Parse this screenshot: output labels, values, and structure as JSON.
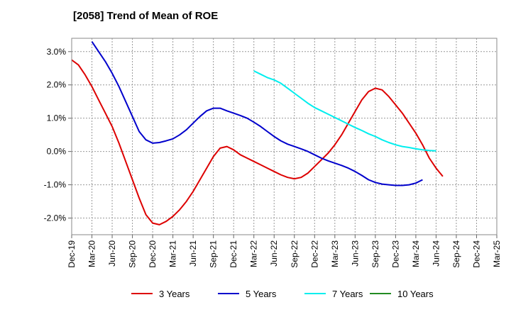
{
  "chart_data": {
    "type": "line",
    "title": "[2058]  Trend of Mean of ROE",
    "xlabel": "",
    "ylabel": "",
    "ylim": [
      -2.5,
      3.4
    ],
    "y_ticks": [
      3.0,
      2.0,
      1.0,
      0.0,
      -1.0,
      -2.0
    ],
    "y_tick_labels": [
      "3.0%",
      "2.0%",
      "1.0%",
      "0.0%",
      "-1.0%",
      "-2.0%"
    ],
    "x_ticks": [
      "Dec-19",
      "Mar-20",
      "Jun-20",
      "Sep-20",
      "Dec-20",
      "Mar-21",
      "Jun-21",
      "Sep-21",
      "Dec-21",
      "Mar-22",
      "Jun-22",
      "Sep-22",
      "Dec-22",
      "Mar-23",
      "Jun-23",
      "Sep-23",
      "Dec-23",
      "Mar-24",
      "Jun-24",
      "Sep-24",
      "Dec-24",
      "Mar-25"
    ],
    "grid": true,
    "legend_position": "bottom",
    "series": [
      {
        "name": "3 Years",
        "color": "#dd0000",
        "points": [
          [
            "Dec-19",
            2.75
          ],
          [
            "Jan-20",
            2.6
          ],
          [
            "Feb-20",
            2.3
          ],
          [
            "Mar-20",
            1.95
          ],
          [
            "Apr-20",
            1.55
          ],
          [
            "May-20",
            1.15
          ],
          [
            "Jun-20",
            0.75
          ],
          [
            "Jul-20",
            0.25
          ],
          [
            "Aug-20",
            -0.3
          ],
          [
            "Sep-20",
            -0.85
          ],
          [
            "Oct-20",
            -1.4
          ],
          [
            "Nov-20",
            -1.9
          ],
          [
            "Dec-20",
            -2.15
          ],
          [
            "Jan-21",
            -2.2
          ],
          [
            "Feb-21",
            -2.1
          ],
          [
            "Mar-21",
            -1.95
          ],
          [
            "Apr-21",
            -1.75
          ],
          [
            "May-21",
            -1.5
          ],
          [
            "Jun-21",
            -1.2
          ],
          [
            "Jul-21",
            -0.85
          ],
          [
            "Aug-21",
            -0.5
          ],
          [
            "Sep-21",
            -0.15
          ],
          [
            "Oct-21",
            0.1
          ],
          [
            "Nov-21",
            0.15
          ],
          [
            "Dec-21",
            0.05
          ],
          [
            "Jan-22",
            -0.1
          ],
          [
            "Feb-22",
            -0.2
          ],
          [
            "Mar-22",
            -0.3
          ],
          [
            "Apr-22",
            -0.4
          ],
          [
            "May-22",
            -0.5
          ],
          [
            "Jun-22",
            -0.6
          ],
          [
            "Jul-22",
            -0.7
          ],
          [
            "Aug-22",
            -0.78
          ],
          [
            "Sep-22",
            -0.82
          ],
          [
            "Oct-22",
            -0.78
          ],
          [
            "Nov-22",
            -0.65
          ],
          [
            "Dec-22",
            -0.45
          ],
          [
            "Jan-23",
            -0.25
          ],
          [
            "Feb-23",
            -0.05
          ],
          [
            "Mar-23",
            0.2
          ],
          [
            "Apr-23",
            0.5
          ],
          [
            "May-23",
            0.85
          ],
          [
            "Jun-23",
            1.2
          ],
          [
            "Jul-23",
            1.55
          ],
          [
            "Aug-23",
            1.8
          ],
          [
            "Sep-23",
            1.9
          ],
          [
            "Oct-23",
            1.85
          ],
          [
            "Nov-23",
            1.65
          ],
          [
            "Dec-23",
            1.4
          ],
          [
            "Jan-24",
            1.15
          ],
          [
            "Feb-24",
            0.85
          ],
          [
            "Mar-24",
            0.55
          ],
          [
            "Apr-24",
            0.2
          ],
          [
            "May-24",
            -0.2
          ],
          [
            "Jun-24",
            -0.5
          ],
          [
            "Jul-24",
            -0.75
          ]
        ]
      },
      {
        "name": "5 Years",
        "color": "#0000cc",
        "points": [
          [
            "Mar-20",
            3.3
          ],
          [
            "Apr-20",
            3.0
          ],
          [
            "May-20",
            2.7
          ],
          [
            "Jun-20",
            2.35
          ],
          [
            "Jul-20",
            1.95
          ],
          [
            "Aug-20",
            1.5
          ],
          [
            "Sep-20",
            1.05
          ],
          [
            "Oct-20",
            0.6
          ],
          [
            "Nov-20",
            0.35
          ],
          [
            "Dec-20",
            0.25
          ],
          [
            "Jan-21",
            0.27
          ],
          [
            "Feb-21",
            0.32
          ],
          [
            "Mar-21",
            0.38
          ],
          [
            "Apr-21",
            0.5
          ],
          [
            "May-21",
            0.65
          ],
          [
            "Jun-21",
            0.85
          ],
          [
            "Jul-21",
            1.05
          ],
          [
            "Aug-21",
            1.22
          ],
          [
            "Sep-21",
            1.3
          ],
          [
            "Oct-21",
            1.3
          ],
          [
            "Nov-21",
            1.22
          ],
          [
            "Dec-21",
            1.15
          ],
          [
            "Jan-22",
            1.08
          ],
          [
            "Feb-22",
            1.0
          ],
          [
            "Mar-22",
            0.88
          ],
          [
            "Apr-22",
            0.75
          ],
          [
            "May-22",
            0.6
          ],
          [
            "Jun-22",
            0.45
          ],
          [
            "Jul-22",
            0.32
          ],
          [
            "Aug-22",
            0.22
          ],
          [
            "Sep-22",
            0.15
          ],
          [
            "Oct-22",
            0.08
          ],
          [
            "Nov-22",
            0.0
          ],
          [
            "Dec-22",
            -0.1
          ],
          [
            "Jan-23",
            -0.2
          ],
          [
            "Feb-23",
            -0.28
          ],
          [
            "Mar-23",
            -0.35
          ],
          [
            "Apr-23",
            -0.42
          ],
          [
            "May-23",
            -0.5
          ],
          [
            "Jun-23",
            -0.6
          ],
          [
            "Jul-23",
            -0.72
          ],
          [
            "Aug-23",
            -0.85
          ],
          [
            "Sep-23",
            -0.93
          ],
          [
            "Oct-23",
            -0.98
          ],
          [
            "Nov-23",
            -1.0
          ],
          [
            "Dec-23",
            -1.02
          ],
          [
            "Jan-24",
            -1.02
          ],
          [
            "Feb-24",
            -1.0
          ],
          [
            "Mar-24",
            -0.95
          ],
          [
            "Apr-24",
            -0.85
          ]
        ]
      },
      {
        "name": "7 Years",
        "color": "#00eeee",
        "points": [
          [
            "Mar-22",
            2.42
          ],
          [
            "Apr-22",
            2.32
          ],
          [
            "May-22",
            2.22
          ],
          [
            "Jun-22",
            2.15
          ],
          [
            "Jul-22",
            2.05
          ],
          [
            "Aug-22",
            1.9
          ],
          [
            "Sep-22",
            1.75
          ],
          [
            "Oct-22",
            1.6
          ],
          [
            "Nov-22",
            1.45
          ],
          [
            "Dec-22",
            1.32
          ],
          [
            "Jan-23",
            1.22
          ],
          [
            "Feb-23",
            1.12
          ],
          [
            "Mar-23",
            1.02
          ],
          [
            "Apr-23",
            0.92
          ],
          [
            "May-23",
            0.82
          ],
          [
            "Jun-23",
            0.72
          ],
          [
            "Jul-23",
            0.63
          ],
          [
            "Aug-23",
            0.53
          ],
          [
            "Sep-23",
            0.45
          ],
          [
            "Oct-23",
            0.35
          ],
          [
            "Nov-23",
            0.27
          ],
          [
            "Dec-23",
            0.2
          ],
          [
            "Jan-24",
            0.15
          ],
          [
            "Feb-24",
            0.12
          ],
          [
            "Mar-24",
            0.08
          ],
          [
            "Apr-24",
            0.05
          ],
          [
            "May-24",
            0.03
          ],
          [
            "Jun-24",
            0.02
          ]
        ]
      },
      {
        "name": "10 Years",
        "color": "#228b22",
        "points": []
      }
    ]
  }
}
